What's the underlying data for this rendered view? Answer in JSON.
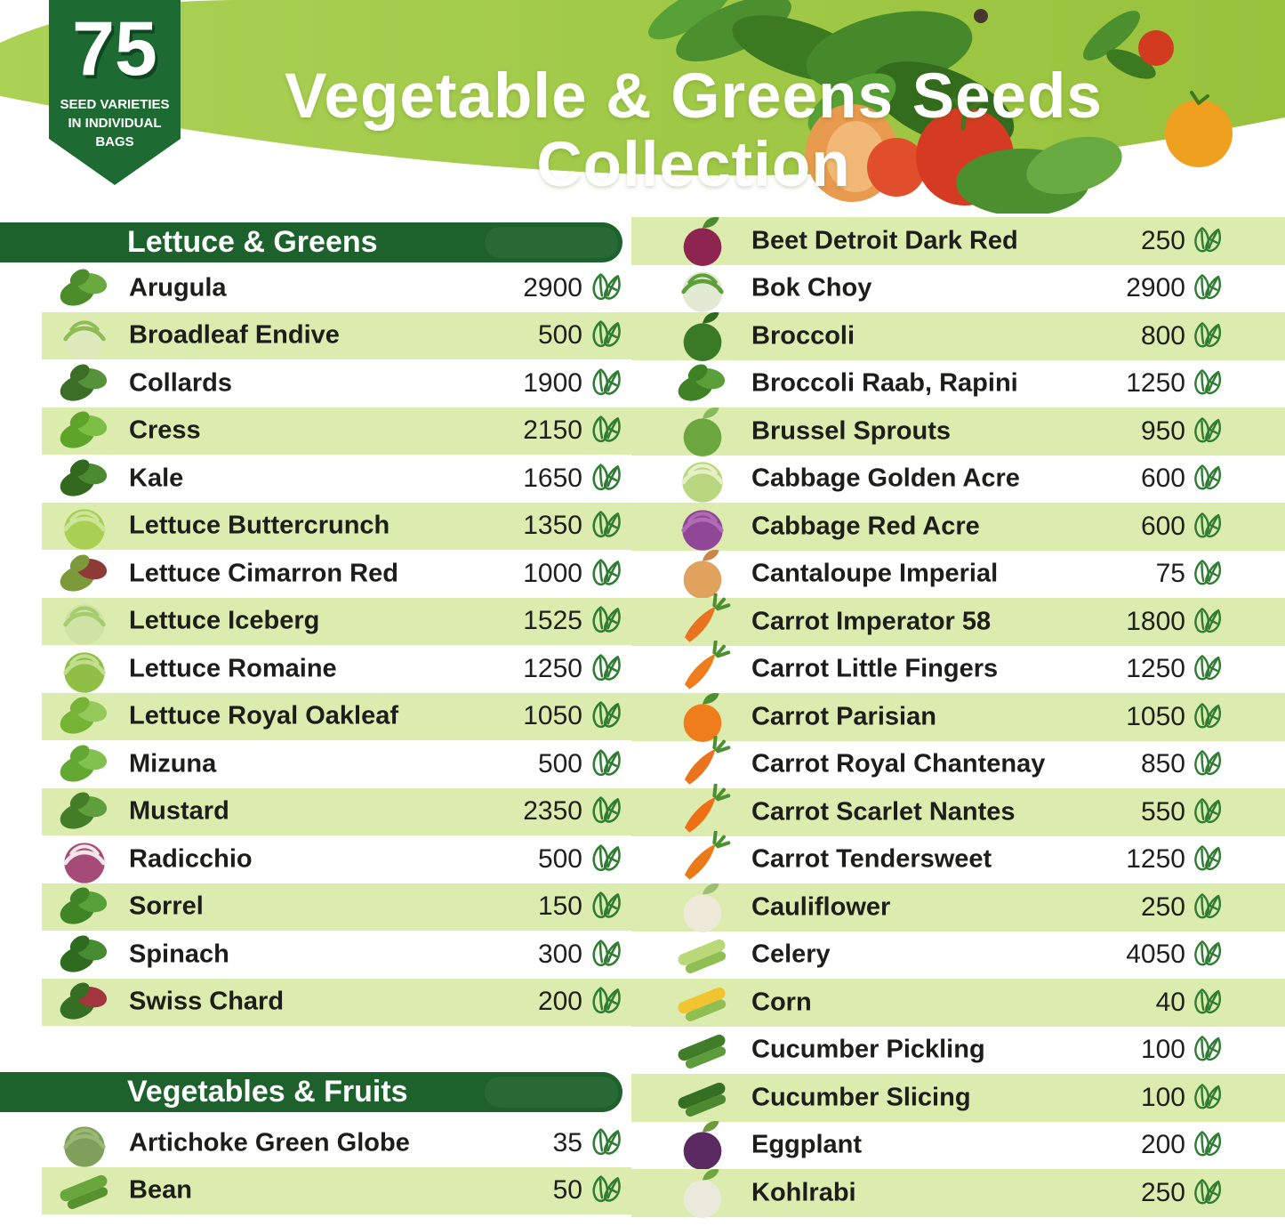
{
  "badge": {
    "number": "75",
    "line1": "SEED VARIETIES",
    "line2": "IN INDIVIDUAL",
    "line3": "BAGS"
  },
  "title": {
    "line1": "Vegetable & Greens Seeds",
    "line2": "Collection"
  },
  "colors": {
    "band_green": "#9fc845",
    "band_green_light": "#abd155",
    "bar_green": "#1d622c",
    "stripe_green": "#dcebae",
    "seed_icon_green": "#2e7d32",
    "text_dark": "#1d1d1b",
    "badge_green": "#1d6a33"
  },
  "left_column": {
    "section1": {
      "label": "Lettuce & Greens",
      "items": [
        {
          "name": "Arugula",
          "count": "2900",
          "icon": "arugula-icon",
          "shape": "leaf",
          "c1": "#4c8c2b",
          "c2": "#6aa93e"
        },
        {
          "name": "Broadleaf Endive",
          "count": "500",
          "icon": "broadleaf-endive-icon",
          "shape": "head",
          "c1": "#dfeabc",
          "c2": "#8fbd53"
        },
        {
          "name": "Collards",
          "count": "1900",
          "icon": "collards-icon",
          "shape": "leaf",
          "c1": "#3c6e26",
          "c2": "#55923a"
        },
        {
          "name": "Cress",
          "count": "2150",
          "icon": "cress-icon",
          "shape": "leaf",
          "c1": "#5da428",
          "c2": "#7cbf45"
        },
        {
          "name": "Kale",
          "count": "1650",
          "icon": "kale-icon",
          "shape": "leaf",
          "c1": "#33681f",
          "c2": "#4c8a31"
        },
        {
          "name": "Lettuce Buttercrunch",
          "count": "1350",
          "icon": "lettuce-buttercrunch-icon",
          "shape": "head",
          "c1": "#a9d052",
          "c2": "#cde59a"
        },
        {
          "name": "Lettuce Cimarron Red",
          "count": "1000",
          "icon": "lettuce-cimarron-red-icon",
          "shape": "leaf",
          "c1": "#7c9a3a",
          "c2": "#8e3b38"
        },
        {
          "name": "Lettuce Iceberg",
          "count": "1525",
          "icon": "lettuce-iceberg-icon",
          "shape": "head",
          "c1": "#cfe3a4",
          "c2": "#a7cc6e"
        },
        {
          "name": "Lettuce Romaine",
          "count": "1250",
          "icon": "lettuce-romaine-icon",
          "shape": "head",
          "c1": "#8fc045",
          "c2": "#c2dd8e"
        },
        {
          "name": "Lettuce Royal Oakleaf",
          "count": "1050",
          "icon": "lettuce-royal-oakleaf-icon",
          "shape": "leaf",
          "c1": "#76b435",
          "c2": "#94ca59"
        },
        {
          "name": "Mizuna",
          "count": "500",
          "icon": "mizuna-icon",
          "shape": "leaf",
          "c1": "#63a832",
          "c2": "#82c150"
        },
        {
          "name": "Mustard",
          "count": "2350",
          "icon": "mustard-icon",
          "shape": "leaf",
          "c1": "#447d27",
          "c2": "#5f9e3c"
        },
        {
          "name": "Radicchio",
          "count": "500",
          "icon": "radicchio-icon",
          "shape": "head",
          "c1": "#a64b77",
          "c2": "#efe6e9"
        },
        {
          "name": "Sorrel",
          "count": "150",
          "icon": "sorrel-icon",
          "shape": "leaf",
          "c1": "#3f8427",
          "c2": "#57a13b"
        },
        {
          "name": "Spinach",
          "count": "300",
          "icon": "spinach-icon",
          "shape": "leaf",
          "c1": "#2f6b1f",
          "c2": "#468c31"
        },
        {
          "name": "Swiss Chard",
          "count": "200",
          "icon": "swiss-chard-icon",
          "shape": "leaf",
          "c1": "#356f22",
          "c2": "#a3353f"
        }
      ]
    },
    "section2": {
      "label": "Vegetables & Fruits",
      "items": [
        {
          "name": "Artichoke Green Globe",
          "count": "35",
          "icon": "artichoke-icon",
          "shape": "head",
          "c1": "#7fa05a",
          "c2": "#9ab873"
        },
        {
          "name": "Bean",
          "count": "50",
          "icon": "bean-icon",
          "shape": "long",
          "c1": "#69a63b",
          "c2": "#57922e"
        }
      ]
    }
  },
  "right_column": {
    "items": [
      {
        "name": "Beet Detroit Dark Red",
        "count": "250",
        "icon": "beet-icon",
        "shape": "round",
        "c1": "#8e2450",
        "c2": "#4c8a31"
      },
      {
        "name": "Bok Choy",
        "count": "2900",
        "icon": "bok-choy-icon",
        "shape": "head",
        "c1": "#e3ead3",
        "c2": "#5f9e3c"
      },
      {
        "name": "Broccoli",
        "count": "800",
        "icon": "broccoli-icon",
        "shape": "round",
        "c1": "#3a7a26",
        "c2": "#2f6b1f"
      },
      {
        "name": "Broccoli Raab, Rapini",
        "count": "1250",
        "icon": "broccoli-raab-icon",
        "shape": "leaf",
        "c1": "#3f8226",
        "c2": "#5a9f3a"
      },
      {
        "name": "Brussel Sprouts",
        "count": "950",
        "icon": "brussel-sprouts-icon",
        "shape": "round",
        "c1": "#6ca63f",
        "c2": "#85bb59"
      },
      {
        "name": "Cabbage Golden Acre",
        "count": "600",
        "icon": "cabbage-golden-acre-icon",
        "shape": "head",
        "c1": "#b9d77f",
        "c2": "#e6efc6"
      },
      {
        "name": "Cabbage Red Acre",
        "count": "600",
        "icon": "cabbage-red-acre-icon",
        "shape": "head",
        "c1": "#8f4796",
        "c2": "#b06bb5"
      },
      {
        "name": "Cantaloupe Imperial",
        "count": "75",
        "icon": "cantaloupe-icon",
        "shape": "round",
        "c1": "#e0a25d",
        "c2": "#c9854a"
      },
      {
        "name": "Carrot Imperator 58",
        "count": "1800",
        "icon": "carrot-imperator-icon",
        "shape": "carrot",
        "c1": "#e9731e",
        "c2": "#4c9031"
      },
      {
        "name": "Carrot Little Fingers",
        "count": "1250",
        "icon": "carrot-little-fingers-icon",
        "shape": "carrot",
        "c1": "#ef7d1c",
        "c2": "#4c9031"
      },
      {
        "name": "Carrot Parisian",
        "count": "1050",
        "icon": "carrot-parisian-icon",
        "shape": "round",
        "c1": "#ef7d1c",
        "c2": "#4c9031"
      },
      {
        "name": "Carrot Royal Chantenay",
        "count": "850",
        "icon": "carrot-royal-chantenay-icon",
        "shape": "carrot",
        "c1": "#e9731e",
        "c2": "#4c9031"
      },
      {
        "name": "Carrot Scarlet Nantes",
        "count": "550",
        "icon": "carrot-scarlet-nantes-icon",
        "shape": "carrot",
        "c1": "#ef6f14",
        "c2": "#4c9031"
      },
      {
        "name": "Carrot Tendersweet",
        "count": "1250",
        "icon": "carrot-tendersweet-icon",
        "shape": "carrot",
        "c1": "#ea7a1a",
        "c2": "#4c9031"
      },
      {
        "name": "Cauliflower",
        "count": "250",
        "icon": "cauliflower-icon",
        "shape": "round",
        "c1": "#efe9da",
        "c2": "#9cbf72"
      },
      {
        "name": "Celery",
        "count": "4050",
        "icon": "celery-icon",
        "shape": "long",
        "c1": "#b9d877",
        "c2": "#8fbf53"
      },
      {
        "name": "Corn",
        "count": "40",
        "icon": "corn-icon",
        "shape": "long",
        "c1": "#f2c431",
        "c2": "#8fbf53"
      },
      {
        "name": "Cucumber Pickling",
        "count": "100",
        "icon": "cucumber-pickling-icon",
        "shape": "long",
        "c1": "#3f7d28",
        "c2": "#5d9c3d"
      },
      {
        "name": "Cucumber Slicing",
        "count": "100",
        "icon": "cucumber-slicing-icon",
        "shape": "long",
        "c1": "#356f22",
        "c2": "#4c8a31"
      },
      {
        "name": "Eggplant",
        "count": "200",
        "icon": "eggplant-icon",
        "shape": "round",
        "c1": "#5a2a60",
        "c2": "#6f9a3a"
      },
      {
        "name": "Kohlrabi",
        "count": "250",
        "icon": "kohlrabi-icon",
        "shape": "round",
        "c1": "#e9ead9",
        "c2": "#6ca63f"
      }
    ]
  }
}
